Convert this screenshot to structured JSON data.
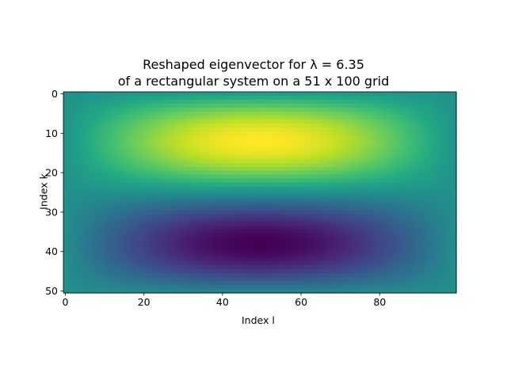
{
  "chart_data": {
    "type": "heatmap",
    "title": "Reshaped eigenvector for λ = 6.35",
    "subtitle": "of a rectangular system on a 51 x 100 grid",
    "xlabel": "Index l",
    "ylabel": "Index k",
    "rows": 51,
    "cols": 100,
    "xlim": [
      -0.5,
      99.5
    ],
    "ylim": [
      50.5,
      -0.5
    ],
    "xticks": [
      0,
      20,
      40,
      60,
      80
    ],
    "yticks": [
      0,
      10,
      20,
      30,
      40,
      50
    ],
    "colormap": "viridis",
    "value_function": "sin(pi*(k+1)/26) * sin(pi*(l+1)/101)",
    "value_range": [
      -1,
      1
    ],
    "grid": false,
    "legend": "none"
  }
}
